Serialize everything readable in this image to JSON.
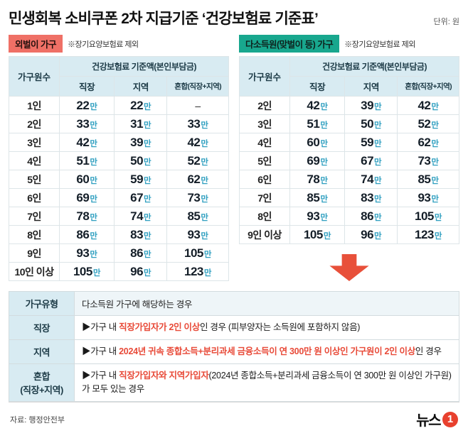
{
  "title": "민생회복 소비쿠폰 2차 지급기준 ‘건강보험료 기준표’",
  "unit_label": "단위: 원",
  "colors": {
    "badge_red": "#ef7066",
    "badge_teal": "#18a78e",
    "header_bg": "#d8ebf2",
    "unit_blue": "#2f9fc0",
    "highlight_red": "#e84a38",
    "arrow_red": "#e8503a"
  },
  "chart_data": [
    {
      "type": "table",
      "title": "외벌이 가구",
      "note": "※장기요양보험료 제외",
      "row_header": "가구원수",
      "group_header": "건강보험료 기준액(본인부담금)",
      "columns": [
        "직장",
        "지역",
        "혼합(직장+지역)"
      ],
      "rows": [
        {
          "label": "1인",
          "values": [
            "22만",
            "22만",
            "–"
          ]
        },
        {
          "label": "2인",
          "values": [
            "33만",
            "31만",
            "33만"
          ]
        },
        {
          "label": "3인",
          "values": [
            "42만",
            "39만",
            "42만"
          ]
        },
        {
          "label": "4인",
          "values": [
            "51만",
            "50만",
            "52만"
          ]
        },
        {
          "label": "5인",
          "values": [
            "60만",
            "59만",
            "62만"
          ]
        },
        {
          "label": "6인",
          "values": [
            "69만",
            "67만",
            "73만"
          ]
        },
        {
          "label": "7인",
          "values": [
            "78만",
            "74만",
            "85만"
          ]
        },
        {
          "label": "8인",
          "values": [
            "86만",
            "83만",
            "93만"
          ]
        },
        {
          "label": "9인",
          "values": [
            "93만",
            "86만",
            "105만"
          ]
        },
        {
          "label": "10인 이상",
          "values": [
            "105만",
            "96만",
            "123만"
          ]
        }
      ]
    },
    {
      "type": "table",
      "title": "다소득원(맞벌이 등) 가구",
      "note": "※장기요양보험료 제외",
      "row_header": "가구원수",
      "group_header": "건강보험료 기준액(본인부담금)",
      "columns": [
        "직장",
        "지역",
        "혼합(직장+지역)"
      ],
      "rows": [
        {
          "label": "2인",
          "values": [
            "42만",
            "39만",
            "42만"
          ]
        },
        {
          "label": "3인",
          "values": [
            "51만",
            "50만",
            "52만"
          ]
        },
        {
          "label": "4인",
          "values": [
            "60만",
            "59만",
            "62만"
          ]
        },
        {
          "label": "5인",
          "values": [
            "69만",
            "67만",
            "73만"
          ]
        },
        {
          "label": "6인",
          "values": [
            "78만",
            "74만",
            "85만"
          ]
        },
        {
          "label": "7인",
          "values": [
            "85만",
            "83만",
            "93만"
          ]
        },
        {
          "label": "8인",
          "values": [
            "93만",
            "86만",
            "105만"
          ]
        },
        {
          "label": "9인 이상",
          "values": [
            "105만",
            "96만",
            "123만"
          ]
        }
      ]
    }
  ],
  "criteria": {
    "header": [
      "가구유형",
      "다소득원 가구에 해당하는 경우"
    ],
    "rows": [
      {
        "label": "직장",
        "segments": [
          {
            "text": "▶가구 내 ",
            "hl": false
          },
          {
            "text": "직장가입자가 2인 이상",
            "hl": true
          },
          {
            "text": "인 경우 (피부양자는 소득원에 포함하지 않음)",
            "hl": false
          }
        ]
      },
      {
        "label": "지역",
        "segments": [
          {
            "text": "▶가구 내 ",
            "hl": false
          },
          {
            "text": "2024년 귀속 종합소득+분리과세 금융소득이 연 300만 원 이상인 가구원이 2인 이상",
            "hl": true
          },
          {
            "text": "인 경우",
            "hl": false
          }
        ]
      },
      {
        "label": "혼합\n(직장+지역)",
        "segments": [
          {
            "text": "▶가구 내 ",
            "hl": false
          },
          {
            "text": "직장가입자와 지역가입자",
            "hl": true
          },
          {
            "text": "(2024년 종합소득+분리과세 금융소득이 연 300만 원 이상인 가구원)가 모두 있는 경우",
            "hl": false
          }
        ]
      }
    ]
  },
  "source": "자료: 행정안전부",
  "logo": {
    "text": "뉴스",
    "one": "1"
  }
}
